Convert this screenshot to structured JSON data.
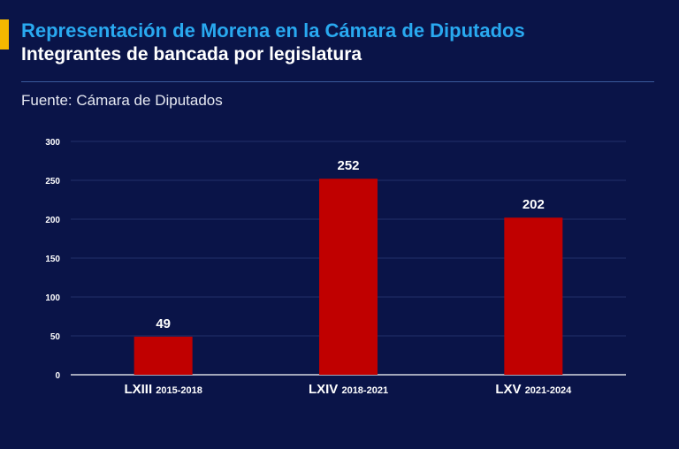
{
  "header": {
    "title": "Representación de Morena en la Cámara de Diputados",
    "subtitle": "Integrantes de bancada por legislatura",
    "source": "Fuente: Cámara de Diputados"
  },
  "colors": {
    "background": "#0a1448",
    "accent": "#f5b800",
    "title": "#29a9f0",
    "bar": "#c00000",
    "grid": "#22306a"
  },
  "chart_data": {
    "type": "bar",
    "categories": [
      {
        "name": "LXIII",
        "period": "2015-2018"
      },
      {
        "name": "LXIV",
        "period": "2018-2021"
      },
      {
        "name": "LXV",
        "period": "2021-2024"
      }
    ],
    "values": [
      49,
      252,
      202
    ],
    "ylim": [
      0,
      300
    ],
    "yticks": [
      0,
      50,
      100,
      150,
      200,
      250,
      300
    ],
    "grid": true,
    "data_labels": true
  }
}
